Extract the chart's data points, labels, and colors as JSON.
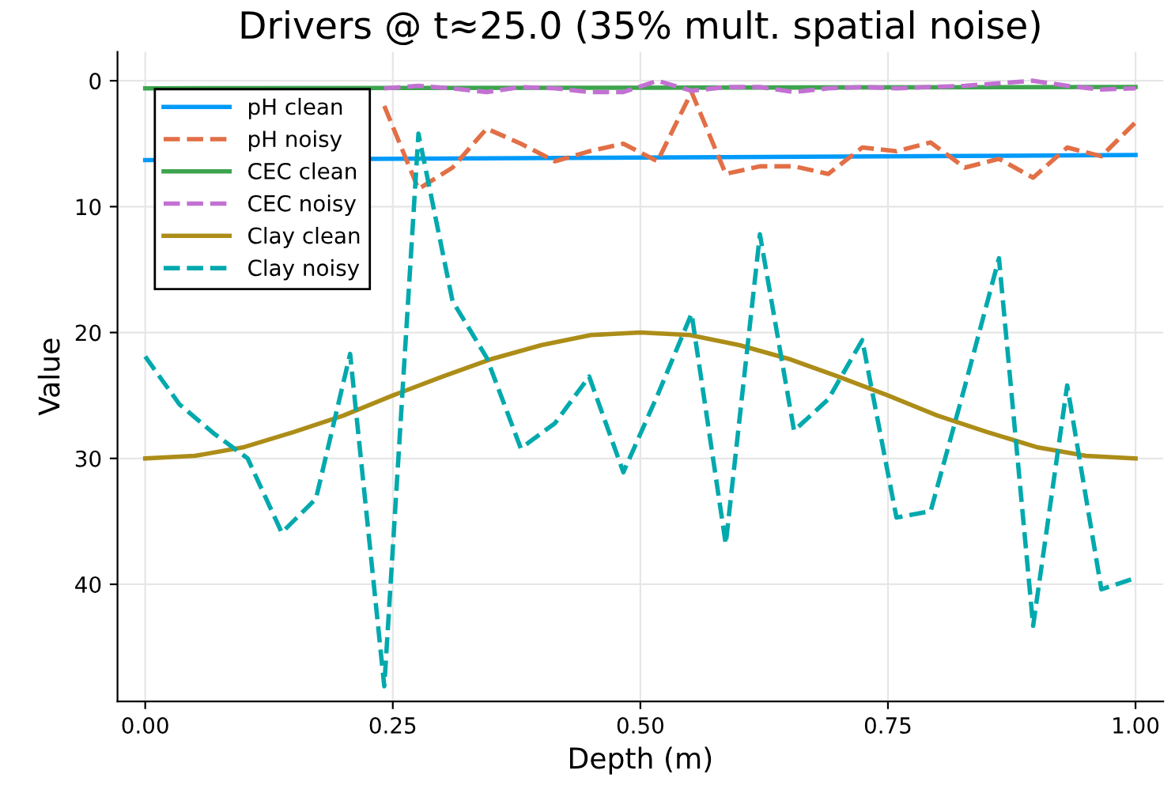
{
  "chart_data": {
    "type": "line",
    "title": "Drivers @ t≈25.0 (35% mult. spatial noise)",
    "xlabel": "Depth (m)",
    "ylabel": "Value",
    "xlim": [
      -0.028,
      1.028
    ],
    "ylim": [
      49.3,
      -2.3
    ],
    "xticks": [
      {
        "value": 0,
        "label": "0.00"
      },
      {
        "value": 0.25,
        "label": "0.25"
      },
      {
        "value": 0.5,
        "label": "0.50"
      },
      {
        "value": 0.75,
        "label": "0.75"
      },
      {
        "value": 1,
        "label": "1.00"
      }
    ],
    "yticks": [
      0,
      10,
      20,
      30,
      40
    ],
    "grid": true,
    "legend": "top left",
    "series": [
      {
        "name": "pH clean",
        "color": "#009af9",
        "line_style": "solid",
        "x": [
          0,
          1
        ],
        "values": [
          6.3,
          5.9
        ]
      },
      {
        "name": "pH noisy",
        "color": "#e26f46",
        "line_style": "dashed",
        "x": [
          0.2414,
          0.2759,
          0.3103,
          0.3448,
          0.3793,
          0.4138,
          0.4483,
          0.4828,
          0.5172,
          0.5517,
          0.5862,
          0.6207,
          0.6552,
          0.6897,
          0.7241,
          0.7586,
          0.7931,
          0.8276,
          0.8621,
          0.8966,
          0.931,
          0.9655,
          1
        ],
        "values": [
          2.0,
          8.6,
          6.9,
          3.8,
          5.0,
          6.4,
          5.6,
          5.0,
          6.4,
          0.9,
          7.4,
          6.8,
          6.8,
          7.4,
          5.3,
          5.6,
          4.9,
          6.9,
          6.2,
          7.7,
          5.3,
          6.0,
          3.3
        ]
      },
      {
        "name": "CEC clean",
        "color": "#3da44d",
        "line_style": "solid",
        "x": [
          0,
          1
        ],
        "values": [
          0.6,
          0.5
        ]
      },
      {
        "name": "CEC noisy",
        "color": "#c271d2",
        "line_style": "dashed",
        "x": [
          0.2414,
          0.2759,
          0.3103,
          0.3448,
          0.3793,
          0.4138,
          0.4483,
          0.4828,
          0.5172,
          0.5517,
          0.5862,
          0.6207,
          0.6552,
          0.6897,
          0.7241,
          0.7586,
          0.7931,
          0.8276,
          0.8621,
          0.8966,
          0.931,
          0.9655,
          1
        ],
        "values": [
          0.6,
          0.4,
          0.6,
          0.9,
          0.5,
          0.6,
          0.9,
          0.9,
          0.0,
          0.8,
          0.5,
          0.5,
          0.9,
          0.6,
          0.5,
          0.6,
          0.5,
          0.4,
          0.2,
          0.0,
          0.4,
          0.7,
          0.6
        ]
      },
      {
        "name": "Clay clean",
        "color": "#ac8d18",
        "line_style": "solid",
        "x": [
          0,
          0.05,
          0.1,
          0.15,
          0.2,
          0.25,
          0.3,
          0.35,
          0.4,
          0.45,
          0.5,
          0.55,
          0.6,
          0.65,
          0.7,
          0.75,
          0.8,
          0.85,
          0.9,
          0.95,
          1
        ],
        "values": [
          30,
          29.8,
          29.1,
          27.9,
          26.6,
          25,
          23.5,
          22.1,
          21,
          20.2,
          20,
          20.2,
          21,
          22.1,
          23.5,
          25,
          26.6,
          27.9,
          29.1,
          29.8,
          30
        ]
      },
      {
        "name": "Clay noisy",
        "color": "#00a9ad",
        "line_style": "dashed",
        "x": [
          0,
          0.0345,
          0.069,
          0.1034,
          0.1379,
          0.1724,
          0.2069,
          0.2414,
          0.2759,
          0.3103,
          0.3448,
          0.3793,
          0.4138,
          0.4483,
          0.4828,
          0.5172,
          0.5517,
          0.5862,
          0.6207,
          0.6552,
          0.6897,
          0.7241,
          0.7586,
          0.7931,
          0.8276,
          0.8621,
          0.8966,
          0.931,
          0.9655,
          1
        ],
        "values": [
          21.9,
          25.7,
          28,
          30,
          35.9,
          33.2,
          21.7,
          48.1,
          4.2,
          17.5,
          22,
          29.2,
          27.2,
          23.5,
          31.1,
          25,
          18.5,
          36.8,
          12.2,
          27.8,
          25.3,
          20.6,
          34.7,
          34.2,
          24.3,
          14.1,
          43.3,
          24.2,
          40.4,
          39.5
        ]
      }
    ]
  }
}
